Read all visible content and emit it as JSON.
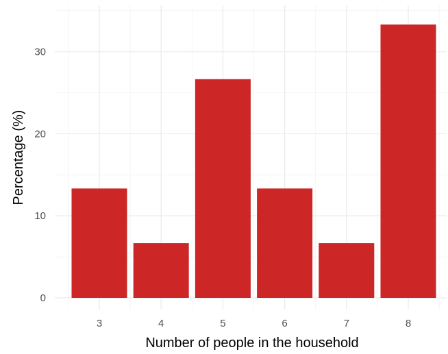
{
  "chart_data": {
    "type": "bar",
    "categories": [
      "3",
      "4",
      "5",
      "6",
      "7",
      "8"
    ],
    "values": [
      13.33,
      6.67,
      26.67,
      13.33,
      6.67,
      33.33
    ],
    "title": "",
    "xlabel": "Number of people in the household",
    "ylabel": "Percentage (%)",
    "ylim": [
      0,
      35
    ],
    "yticks": [
      0,
      10,
      20,
      30
    ],
    "grid": true,
    "legend": "none",
    "bar_color": "#CC2626",
    "background": "#FFFFFF"
  }
}
